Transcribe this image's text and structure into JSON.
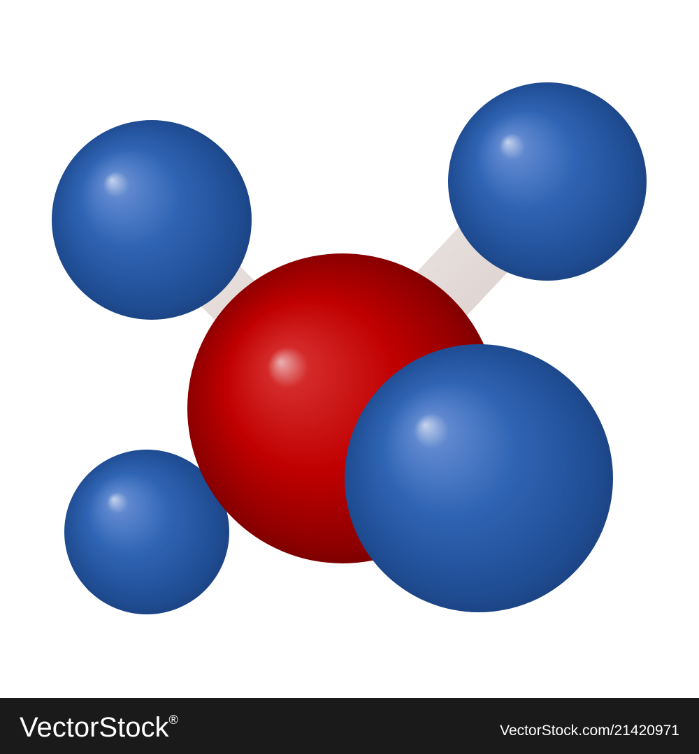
{
  "watermark": {
    "brand": "VectorStock",
    "registered": "®",
    "id": "VectorStock.com/21420971"
  }
}
